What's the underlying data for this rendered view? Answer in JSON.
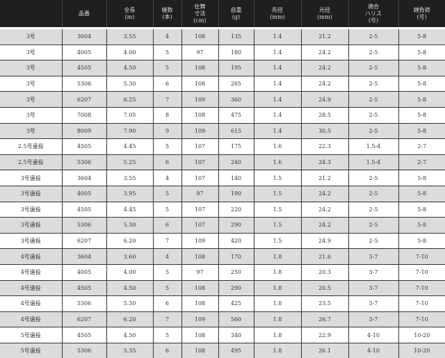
{
  "headers": [
    "",
    "品番",
    "全長\n(m)",
    "継数\n(本)",
    "仕舞\n寸法\n(cm)",
    "自重\n(g)",
    "先径\n(mm)",
    "元径\n(mm)",
    "適合\nハリス\n(号)",
    "錘負荷\n(号)"
  ],
  "rows": [
    [
      "3号",
      "3604",
      "3.55",
      "4",
      "108",
      "135",
      "1.4",
      "21.2",
      "2-5",
      "5-8"
    ],
    [
      "3号",
      "4005",
      "4.00",
      "5",
      "97",
      "180",
      "1.4",
      "24.2",
      "2-5",
      "5-8"
    ],
    [
      "3号",
      "4505",
      "4.50",
      "5",
      "108",
      "195",
      "1.4",
      "24.2",
      "2-5",
      "5-8"
    ],
    [
      "3号",
      "5306",
      "5.30",
      "6",
      "108",
      "265",
      "1.4",
      "24.2",
      "2-5",
      "5-8"
    ],
    [
      "3号",
      "6207",
      "6.25",
      "7",
      "109",
      "360",
      "1.4",
      "24.9",
      "2-5",
      "5-8"
    ],
    [
      "3号",
      "7008",
      "7.05",
      "8",
      "108",
      "475",
      "1.4",
      "28.5",
      "2-5",
      "5-8"
    ],
    [
      "3号",
      "8009",
      "7.90",
      "9",
      "109",
      "615",
      "1.4",
      "30.5",
      "2-5",
      "5-8"
    ],
    [
      "2.5号遠投",
      "4505",
      "4.45",
      "5",
      "107",
      "175",
      "1.6",
      "22.3",
      "1.5-4",
      "2-7"
    ],
    [
      "2.5号遠投",
      "5306",
      "5.25",
      "6",
      "107",
      "240",
      "1.6",
      "24.3",
      "1.5-4",
      "2-7"
    ],
    [
      "3号遠投",
      "3604",
      "3.55",
      "4",
      "107",
      "140",
      "1.5",
      "21.2",
      "2-5",
      "5-8"
    ],
    [
      "3号遠投",
      "4005",
      "3.95",
      "5",
      "97",
      "190",
      "1.5",
      "24.2",
      "2-5",
      "5-8"
    ],
    [
      "3号遠投",
      "4505",
      "4.45",
      "5",
      "107",
      "220",
      "1.5",
      "24.2",
      "2-5",
      "5-8"
    ],
    [
      "3号遠投",
      "5306",
      "5.30",
      "6",
      "107",
      "290",
      "1.5",
      "24.2",
      "2-5",
      "5-8"
    ],
    [
      "3号遠投",
      "6207",
      "6.20",
      "7",
      "109",
      "420",
      "1.5",
      "24.9",
      "2-5",
      "5-8"
    ],
    [
      "4号遠投",
      "3604",
      "3.60",
      "4",
      "108",
      "170",
      "1.8",
      "21.6",
      "3-7",
      "7-10"
    ],
    [
      "4号遠投",
      "4005",
      "4.00",
      "5",
      "97",
      "250",
      "1.8",
      "20.3",
      "3-7",
      "7-10"
    ],
    [
      "4号遠投",
      "4505",
      "4.50",
      "5",
      "108",
      "290",
      "1.8",
      "20.5",
      "3-7",
      "7-10"
    ],
    [
      "4号遠投",
      "5306",
      "5.30",
      "6",
      "108",
      "425",
      "1.8",
      "23.5",
      "3-7",
      "7-10"
    ],
    [
      "4号遠投",
      "6207",
      "6.20",
      "7",
      "109",
      "560",
      "1.8",
      "26.7",
      "3-7",
      "7-10"
    ],
    [
      "5号遠投",
      "4505",
      "4.50",
      "5",
      "108",
      "340",
      "1.8",
      "22.9",
      "4-10",
      "10-20"
    ],
    [
      "5号遠投",
      "5306",
      "5.35",
      "6",
      "108",
      "495",
      "1.8",
      "26.1",
      "4-10",
      "10-20"
    ]
  ]
}
